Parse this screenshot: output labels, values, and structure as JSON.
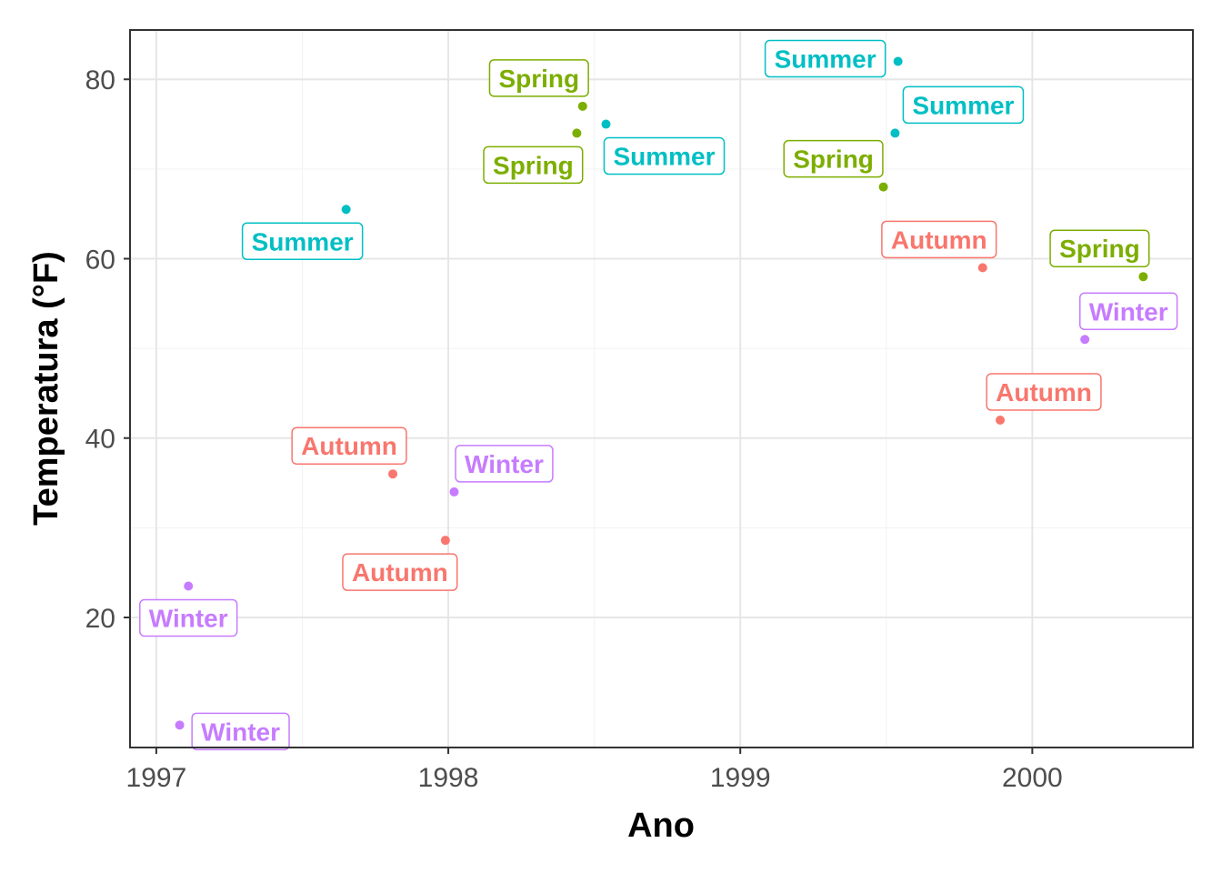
{
  "chart_data": {
    "type": "scatter",
    "xlabel": "Ano",
    "ylabel": "Temperatura (°F)",
    "xlim": [
      1996.91,
      2000.55
    ],
    "ylim": [
      5.5,
      85.5
    ],
    "x_ticks": [
      "1997",
      "1998",
      "1999",
      "2000"
    ],
    "x_tick_values": [
      1997,
      1998,
      1999,
      2000
    ],
    "y_ticks": [
      "20",
      "40",
      "60",
      "80"
    ],
    "y_tick_values": [
      20,
      40,
      60,
      80
    ],
    "grid": true,
    "legend": "none",
    "colors": {
      "Autumn": "#F8766D",
      "Spring": "#7CAE00",
      "Summer": "#00BFC4",
      "Winter": "#C77CFF"
    },
    "points": [
      {
        "x": 1997.08,
        "y": 8.0,
        "season": "Winter"
      },
      {
        "x": 1997.11,
        "y": 23.5,
        "season": "Winter"
      },
      {
        "x": 1997.65,
        "y": 65.5,
        "season": "Summer"
      },
      {
        "x": 1997.81,
        "y": 36.0,
        "season": "Autumn"
      },
      {
        "x": 1997.99,
        "y": 28.6,
        "season": "Autumn"
      },
      {
        "x": 1998.02,
        "y": 34.0,
        "season": "Winter"
      },
      {
        "x": 1998.44,
        "y": 74.0,
        "season": "Spring"
      },
      {
        "x": 1998.46,
        "y": 77.0,
        "season": "Spring"
      },
      {
        "x": 1998.54,
        "y": 75.0,
        "season": "Summer"
      },
      {
        "x": 1999.49,
        "y": 68.0,
        "season": "Spring"
      },
      {
        "x": 1999.53,
        "y": 74.0,
        "season": "Summer"
      },
      {
        "x": 1999.54,
        "y": 82.0,
        "season": "Summer"
      },
      {
        "x": 1999.83,
        "y": 59.0,
        "season": "Autumn"
      },
      {
        "x": 1999.89,
        "y": 42.0,
        "season": "Autumn"
      },
      {
        "x": 2000.18,
        "y": 51.0,
        "season": "Winter"
      },
      {
        "x": 2000.38,
        "y": 58.0,
        "season": "Spring"
      }
    ]
  }
}
